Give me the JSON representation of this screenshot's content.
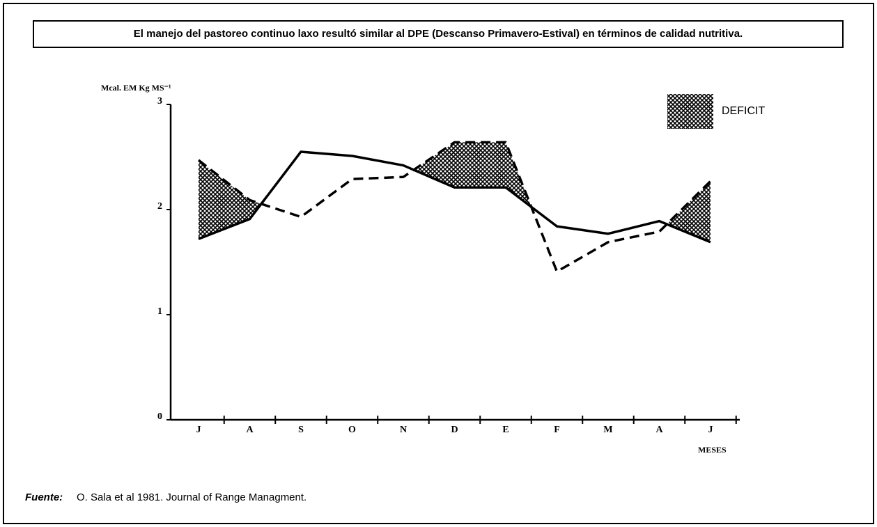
{
  "chart_data": {
    "type": "line",
    "title": "El manejo del pastoreo continuo laxo resultó similar al DPE  (Descanso Primavero-Estival) en términos de calidad nutritiva.",
    "ylabel": "Mcal. EM Kg MS⁻¹",
    "xlabel": "MESES",
    "categories": [
      "J",
      "A",
      "S",
      "O",
      "N",
      "D",
      "E",
      "F",
      "M",
      "A",
      "J"
    ],
    "series": [
      {
        "color": "#000000",
        "style": "solid",
        "values": [
          1.72,
          1.91,
          2.55,
          2.51,
          2.42,
          2.21,
          2.21,
          1.84,
          1.77,
          1.89,
          1.69
        ]
      },
      {
        "color": "#000000",
        "style": "dashed",
        "values": [
          2.47,
          2.09,
          1.93,
          2.29,
          2.31,
          2.64,
          2.64,
          1.41,
          1.69,
          1.79,
          2.27
        ]
      }
    ],
    "deficit_label": "DEFICIT",
    "ylim": [
      0,
      3
    ],
    "yticks": [
      0,
      1,
      2,
      3
    ],
    "source_label": "Fuente:",
    "source": "O. Sala et al 1981. Journal of Range Managment."
  }
}
